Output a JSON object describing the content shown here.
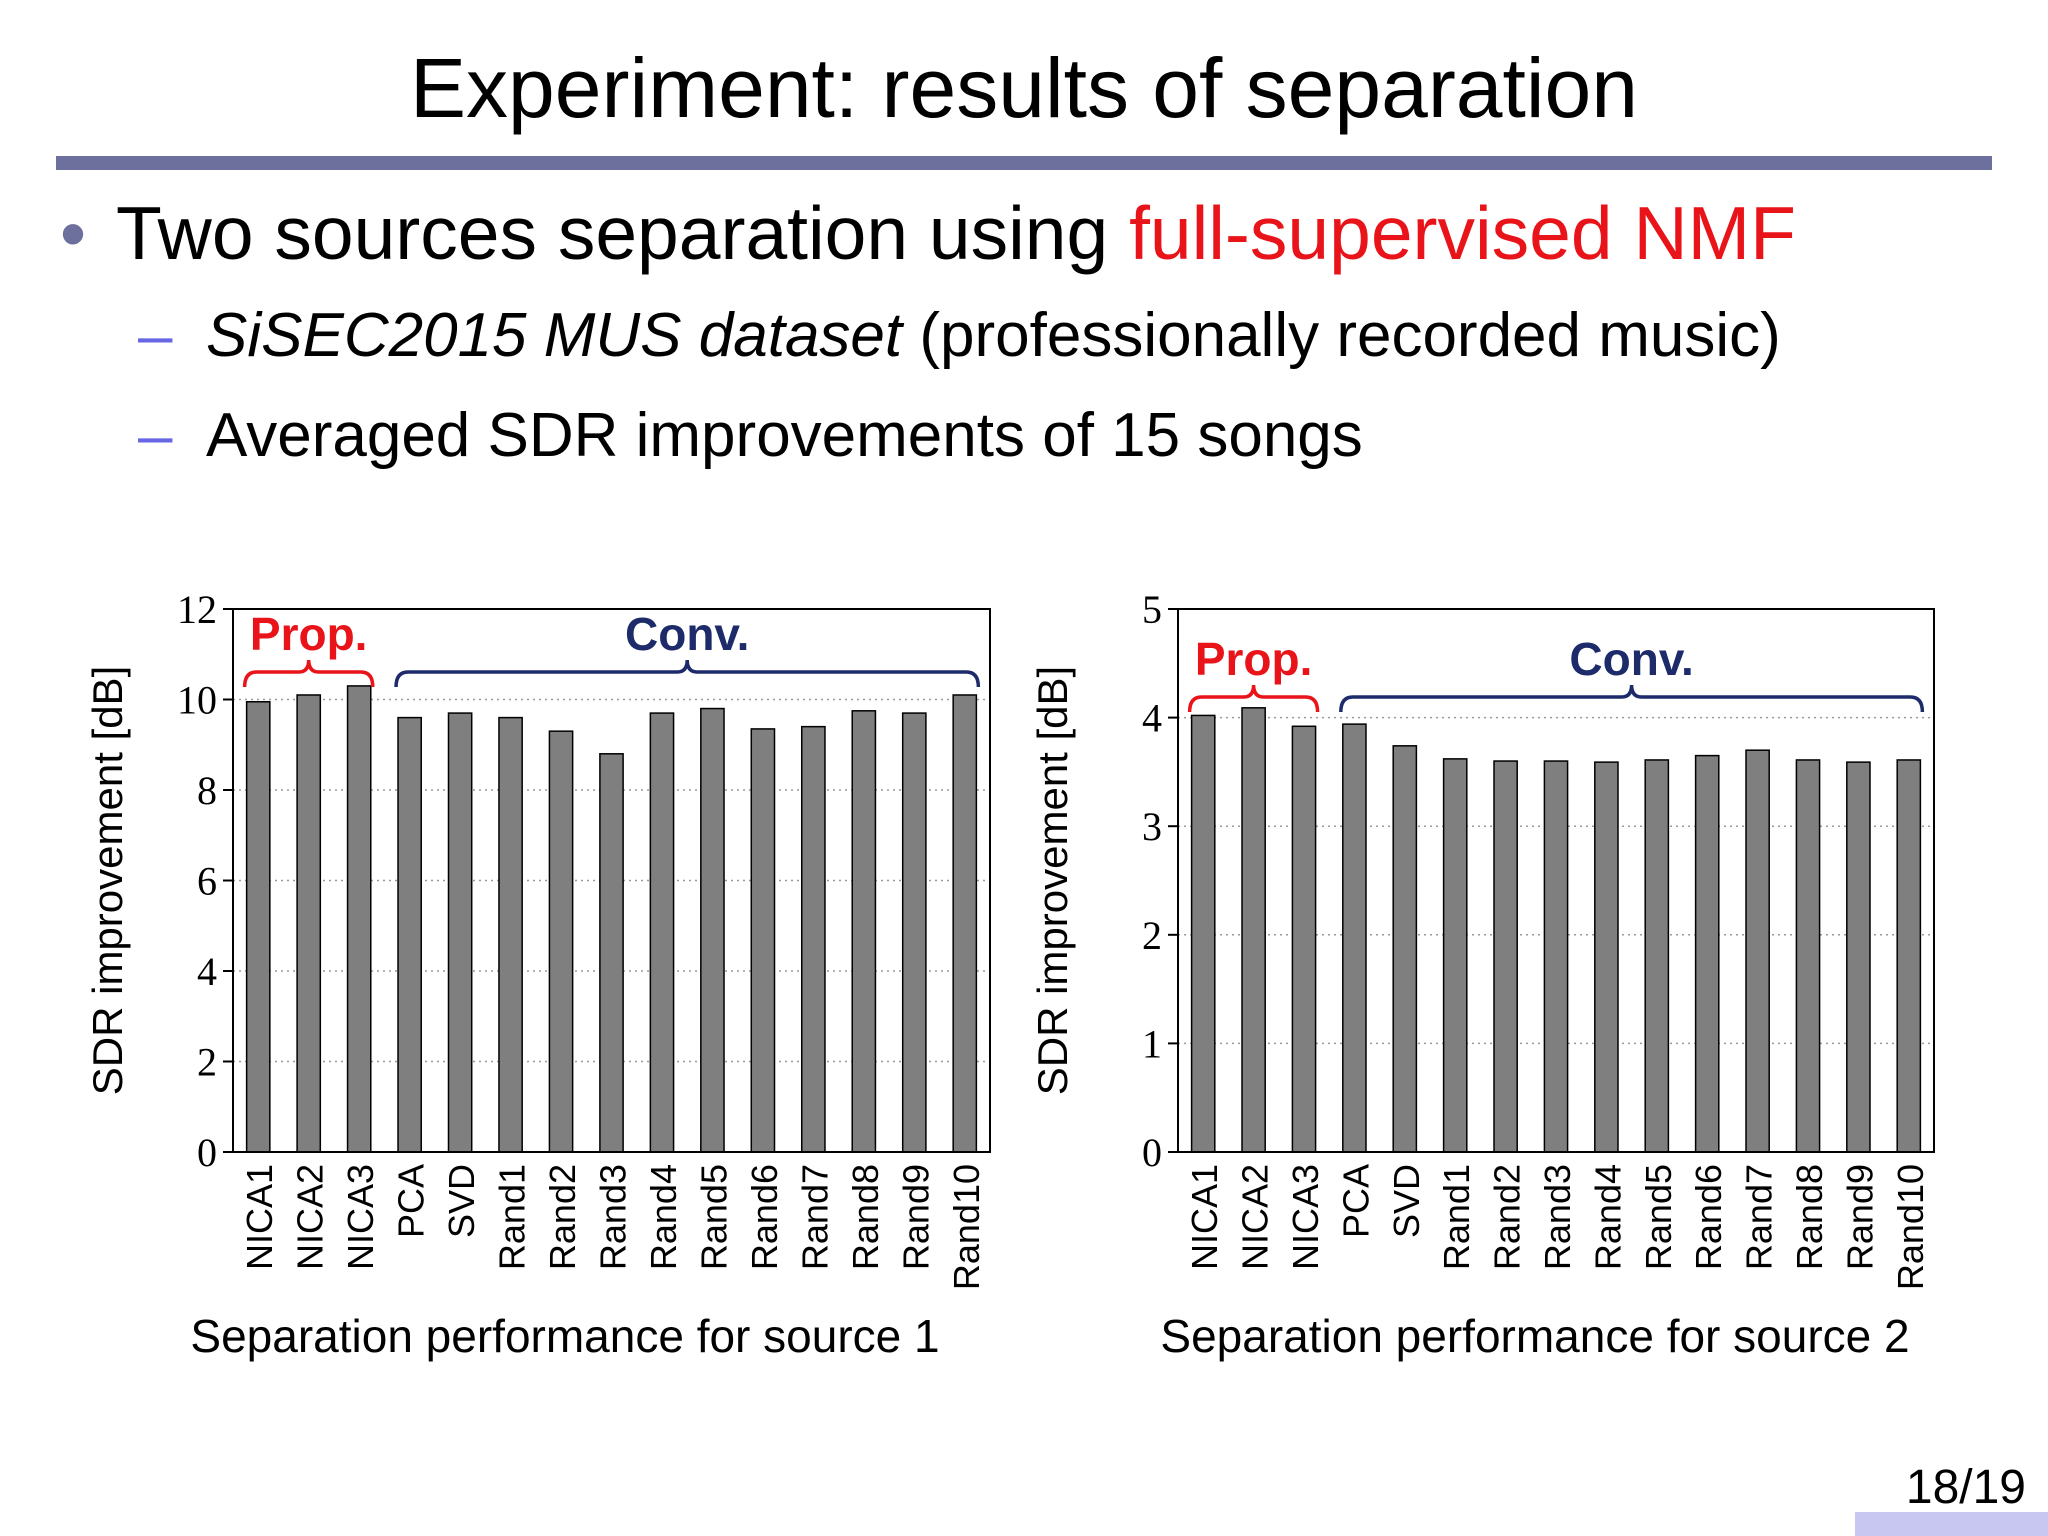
{
  "slide": {
    "title": "Experiment: results of separation",
    "bullet_main": "Two sources separation using ",
    "bullet_accent": "full-supervised NMF",
    "sub1_italic": "SiSEC2015 MUS dataset",
    "sub1_rest": " (professionally recorded music)",
    "sub2": "Averaged SDR improvements of 15 songs",
    "page_number": "18/19"
  },
  "colors": {
    "bar": "#7f7f7f",
    "prop": "#e8141a",
    "conv": "#1d2b6b",
    "title_rule": "#6d6f9c"
  },
  "chart_data": [
    {
      "type": "bar",
      "title": "Separation performance for source 1",
      "ylabel": "SDR improvement [dB]",
      "ylim": [
        0,
        12
      ],
      "yticks": [
        0,
        2,
        4,
        6,
        8,
        10,
        12
      ],
      "grid": true,
      "categories": [
        "NICA1",
        "NICA2",
        "NICA3",
        "PCA",
        "SVD",
        "Rand1",
        "Rand2",
        "Rand3",
        "Rand4",
        "Rand5",
        "Rand6",
        "Rand7",
        "Rand8",
        "Rand9",
        "Rand10"
      ],
      "values": [
        9.95,
        10.1,
        10.3,
        9.6,
        9.7,
        9.6,
        9.3,
        8.8,
        9.7,
        9.8,
        9.35,
        9.4,
        9.75,
        9.7,
        10.1
      ],
      "groups": [
        {
          "label": "Prop.",
          "from": 0,
          "to": 2,
          "color": "prop"
        },
        {
          "label": "Conv.",
          "from": 3,
          "to": 14,
          "color": "conv"
        }
      ]
    },
    {
      "type": "bar",
      "title": "Separation performance for source 2",
      "ylabel": "SDR improvement [dB]",
      "ylim": [
        0,
        5
      ],
      "yticks": [
        0,
        1,
        2,
        3,
        4,
        5
      ],
      "grid": true,
      "categories": [
        "NICA1",
        "NICA2",
        "NICA3",
        "PCA",
        "SVD",
        "Rand1",
        "Rand2",
        "Rand3",
        "Rand4",
        "Rand5",
        "Rand6",
        "Rand7",
        "Rand8",
        "Rand9",
        "Rand10"
      ],
      "values": [
        4.02,
        4.09,
        3.92,
        3.94,
        3.74,
        3.62,
        3.6,
        3.6,
        3.59,
        3.61,
        3.65,
        3.7,
        3.61,
        3.59,
        3.61
      ],
      "groups": [
        {
          "label": "Prop.",
          "from": 0,
          "to": 2,
          "color": "prop"
        },
        {
          "label": "Conv.",
          "from": 3,
          "to": 14,
          "color": "conv"
        }
      ]
    }
  ]
}
